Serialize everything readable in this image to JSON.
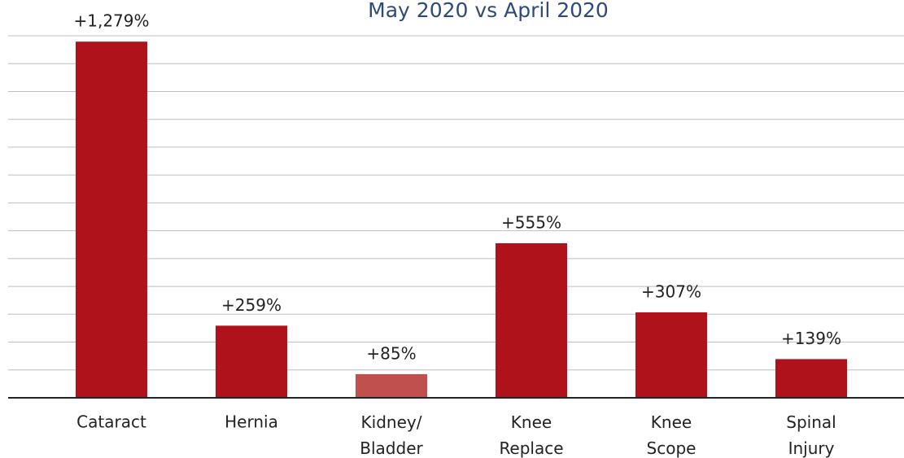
{
  "chart_data": {
    "type": "bar",
    "title": "May 2020 vs April 2020",
    "categories": [
      "Cataract",
      "Hernia",
      "Kidney/\nBladder",
      "Knee\nReplace",
      "Knee\nScope",
      "Spinal\nInjury"
    ],
    "values": [
      1279,
      259,
      85,
      555,
      307,
      139
    ],
    "value_labels": [
      "+1,279%",
      "+259%",
      "+85%",
      "+555%",
      "+307%",
      "+139%"
    ],
    "colors": [
      "#b0121b",
      "#b0121b",
      "#c0504d",
      "#b0121b",
      "#b0121b",
      "#b0121b"
    ],
    "ylim": [
      0,
      1300
    ],
    "yticks": [
      0,
      100,
      200,
      300,
      400,
      500,
      600,
      700,
      800,
      900,
      1000,
      1100,
      1200,
      1300
    ],
    "grid": true
  }
}
